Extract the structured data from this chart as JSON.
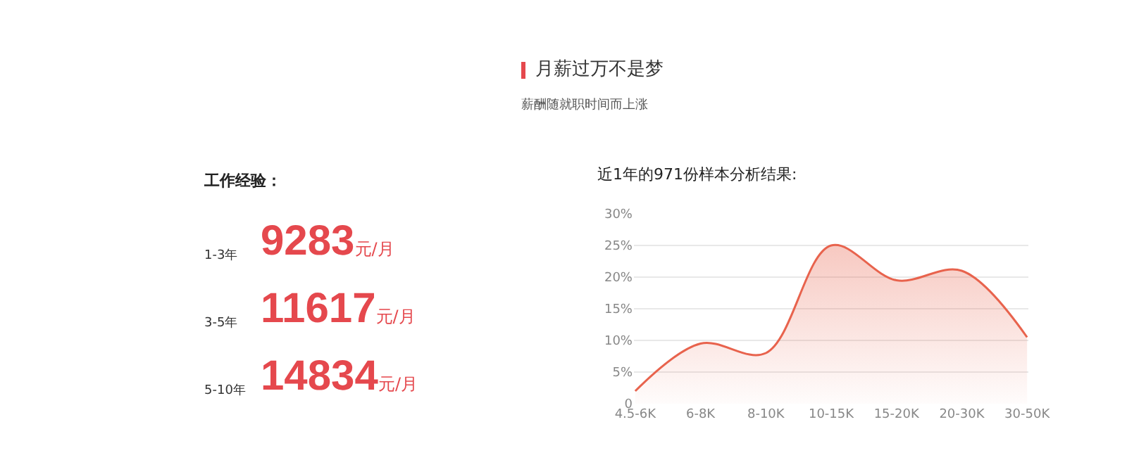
{
  "chart_data": [
    {
      "type": "other",
      "title": "月薪过万不是梦",
      "subtitle": "薪酬随就职时间而上涨"
    },
    {
      "type": "other",
      "title": "工作经验：",
      "categories": [
        "1-3年",
        "3-5年",
        "5-10年"
      ],
      "values": [
        9283,
        11617,
        14834
      ],
      "ylabel": "元/月",
      "color": "#e5484d",
      "data_labels": true
    },
    {
      "type": "area",
      "title": "近1年的971份样本分析结果:",
      "categories": [
        "4.5-6K",
        "6-8K",
        "8-10K",
        "10-15K",
        "15-20K",
        "20-30K",
        "30-50K"
      ],
      "series": [
        {
          "color": "#e8634d",
          "values": [
            2,
            9.5,
            8,
            25,
            19.5,
            21,
            10.5
          ]
        }
      ],
      "ylim": [
        0,
        30
      ],
      "yticks": [
        {
          "value": 0,
          "label": "0"
        },
        {
          "value": 5,
          "label": "5%"
        },
        {
          "value": 10,
          "label": "10%"
        },
        {
          "value": 15,
          "label": "15%"
        },
        {
          "value": 20,
          "label": "20%"
        },
        {
          "value": 25,
          "label": "25%"
        },
        {
          "value": 30,
          "label": "30%"
        }
      ],
      "grid": "y",
      "marker": "none",
      "line_style": "solid"
    }
  ]
}
